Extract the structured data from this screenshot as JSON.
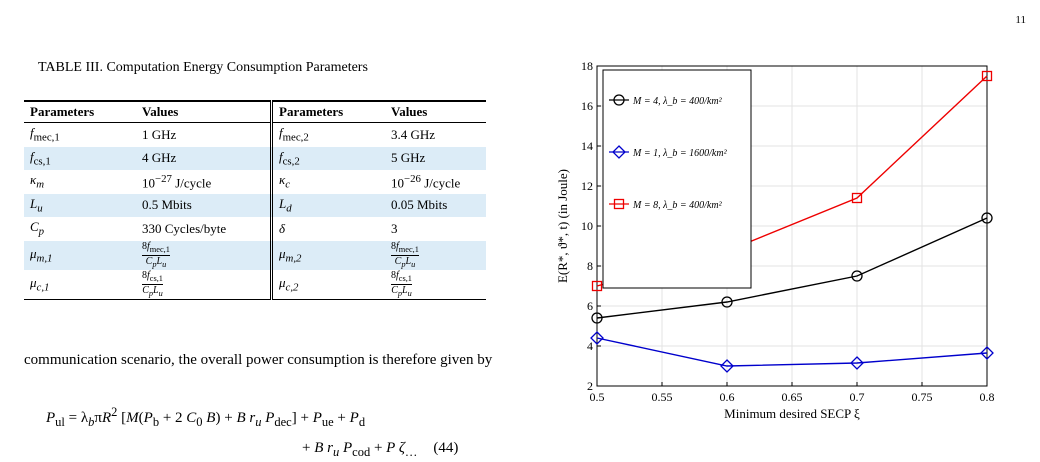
{
  "page_number": "11",
  "table": {
    "caption": "TABLE III. Computation Energy Consumption Parameters",
    "headers": [
      "Parameters",
      "Values",
      "Parameters",
      "Values"
    ],
    "rows": [
      {
        "p1": "f_mec,1",
        "v1": "1 GHz",
        "p2": "f_mec,2",
        "v2": "3.4 GHz",
        "shaded": false
      },
      {
        "p1": "f_cs,1",
        "v1": "4 GHz",
        "p2": "f_cs,2",
        "v2": "5 GHz",
        "shaded": true
      },
      {
        "p1": "κ_m",
        "v1": "10^−27 J/cycle",
        "p2": "κ_c",
        "v2": "10^−26 J/cycle",
        "shaded": false
      },
      {
        "p1": "L_u",
        "v1": "0.5 Mbits",
        "p2": "L_d",
        "v2": "0.05 Mbits",
        "shaded": true
      },
      {
        "p1": "C_p",
        "v1": "330 Cycles/byte",
        "p2": "δ",
        "v2": "3",
        "shaded": false
      },
      {
        "p1": "μ_m,1",
        "v1": "8f_mec,1 / C_p L_u",
        "p2": "μ_m,2",
        "v2": "8f_mec,1 / C_p L_u",
        "shaded": true
      },
      {
        "p1": "μ_c,1",
        "v1": "8f_cs,1 / C_p L_u",
        "p2": "μ_c,2",
        "v2": "8f_cs,1 / C_p L_u",
        "shaded": false
      }
    ]
  },
  "body_text": "communication scenario, the overall power consumption is therefore given by",
  "equation": {
    "line1": "P_ul = λ_b π R² [M(P_b + 2 C_0 B) + B r_u P_dec] + P_ue + P_d",
    "line2": "+ B r_u P_cod + P ζ_...",
    "number": "(44)"
  },
  "chart_data": {
    "type": "line",
    "xlabel": "Minimum desired SECP ξ",
    "ylabel": "E(R*, ϑ*, t) (in Joule)",
    "xlim": [
      0.5,
      0.8
    ],
    "ylim": [
      2,
      18
    ],
    "x_ticks": [
      "0.5",
      "0.55",
      "0.6",
      "0.65",
      "0.7",
      "0.75",
      "0.8"
    ],
    "y_ticks": [
      "2",
      "4",
      "6",
      "8",
      "10",
      "12",
      "14",
      "16",
      "18"
    ],
    "grid": true,
    "legend_position": "top-left",
    "series": [
      {
        "name": "M = 4, λ_b = 400/km²",
        "color": "#000000",
        "marker": "circle",
        "x": [
          0.5,
          0.6,
          0.7,
          0.8
        ],
        "values": [
          5.4,
          6.2,
          7.5,
          10.4
        ]
      },
      {
        "name": "M = 1, λ_b = 1600/km²",
        "color": "#0000cc",
        "marker": "diamond",
        "x": [
          0.5,
          0.6,
          0.7,
          0.8
        ],
        "values": [
          4.4,
          3.0,
          3.15,
          3.65
        ]
      },
      {
        "name": "M = 8, λ_b = 400/km²",
        "color": "#ee0000",
        "marker": "square",
        "x": [
          0.5,
          0.6,
          0.7,
          0.8
        ],
        "values": [
          7.0,
          8.75,
          11.4,
          17.5
        ]
      }
    ]
  }
}
